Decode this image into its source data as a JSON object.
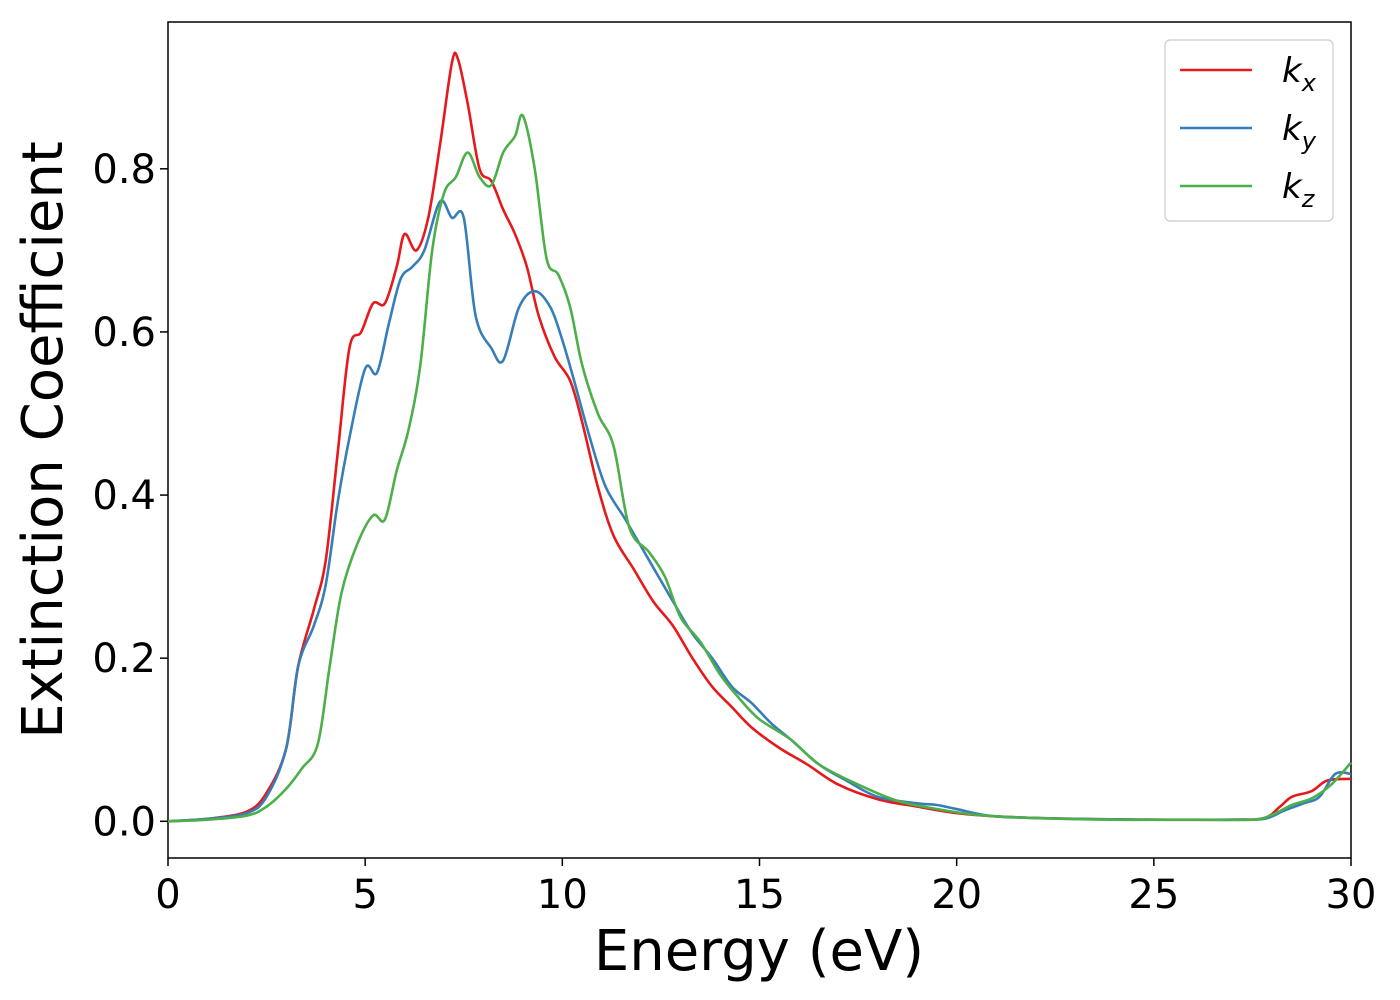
{
  "chart_data": {
    "type": "line",
    "xlabel": "Energy (eV)",
    "ylabel": "Extinction Coefficient",
    "xlim": [
      0,
      30
    ],
    "ylim": [
      -0.045,
      0.98
    ],
    "x_ticks": [
      "0",
      "5",
      "10",
      "15",
      "20",
      "25",
      "30"
    ],
    "y_ticks": [
      "0.0",
      "0.2",
      "0.4",
      "0.6",
      "0.8"
    ],
    "grid": false,
    "legend_position": "top-right",
    "series": [
      {
        "name": "k",
        "subscript": "x",
        "color": "#e41a1c",
        "points": [
          [
            0,
            0.0
          ],
          [
            1,
            0.003
          ],
          [
            2,
            0.012
          ],
          [
            2.5,
            0.035
          ],
          [
            3,
            0.09
          ],
          [
            3.3,
            0.19
          ],
          [
            3.7,
            0.26
          ],
          [
            4,
            0.32
          ],
          [
            4.3,
            0.45
          ],
          [
            4.6,
            0.58
          ],
          [
            4.9,
            0.6
          ],
          [
            5.2,
            0.635
          ],
          [
            5.5,
            0.635
          ],
          [
            5.8,
            0.68
          ],
          [
            6,
            0.72
          ],
          [
            6.3,
            0.7
          ],
          [
            6.6,
            0.74
          ],
          [
            6.9,
            0.83
          ],
          [
            7.2,
            0.93
          ],
          [
            7.35,
            0.935
          ],
          [
            7.6,
            0.88
          ],
          [
            7.9,
            0.8
          ],
          [
            8.2,
            0.785
          ],
          [
            8.5,
            0.75
          ],
          [
            8.8,
            0.72
          ],
          [
            9.1,
            0.68
          ],
          [
            9.4,
            0.62
          ],
          [
            9.8,
            0.57
          ],
          [
            10.2,
            0.54
          ],
          [
            10.5,
            0.49
          ],
          [
            10.9,
            0.41
          ],
          [
            11.3,
            0.35
          ],
          [
            11.8,
            0.31
          ],
          [
            12.3,
            0.27
          ],
          [
            12.8,
            0.24
          ],
          [
            13.3,
            0.2
          ],
          [
            13.8,
            0.165
          ],
          [
            14.3,
            0.14
          ],
          [
            14.8,
            0.115
          ],
          [
            15.5,
            0.09
          ],
          [
            16.2,
            0.07
          ],
          [
            17,
            0.045
          ],
          [
            18,
            0.027
          ],
          [
            19,
            0.018
          ],
          [
            20,
            0.01
          ],
          [
            21,
            0.006
          ],
          [
            23,
            0.003
          ],
          [
            25,
            0.002
          ],
          [
            27,
            0.002
          ],
          [
            27.8,
            0.004
          ],
          [
            28.2,
            0.018
          ],
          [
            28.5,
            0.03
          ],
          [
            29,
            0.037
          ],
          [
            29.4,
            0.05
          ],
          [
            30,
            0.052
          ]
        ]
      },
      {
        "name": "k",
        "subscript": "y",
        "color": "#377eb8",
        "points": [
          [
            0,
            0.0
          ],
          [
            1,
            0.003
          ],
          [
            2,
            0.01
          ],
          [
            2.5,
            0.03
          ],
          [
            3,
            0.09
          ],
          [
            3.3,
            0.19
          ],
          [
            3.7,
            0.24
          ],
          [
            4,
            0.29
          ],
          [
            4.3,
            0.39
          ],
          [
            4.6,
            0.47
          ],
          [
            5,
            0.555
          ],
          [
            5.3,
            0.55
          ],
          [
            5.6,
            0.61
          ],
          [
            5.9,
            0.665
          ],
          [
            6.2,
            0.68
          ],
          [
            6.5,
            0.7
          ],
          [
            6.9,
            0.76
          ],
          [
            7.2,
            0.74
          ],
          [
            7.5,
            0.74
          ],
          [
            7.8,
            0.62
          ],
          [
            8.2,
            0.58
          ],
          [
            8.5,
            0.565
          ],
          [
            8.9,
            0.63
          ],
          [
            9.3,
            0.65
          ],
          [
            9.7,
            0.63
          ],
          [
            10,
            0.59
          ],
          [
            10.3,
            0.54
          ],
          [
            10.7,
            0.47
          ],
          [
            11.1,
            0.41
          ],
          [
            11.6,
            0.37
          ],
          [
            12.2,
            0.32
          ],
          [
            12.8,
            0.27
          ],
          [
            13.3,
            0.23
          ],
          [
            13.8,
            0.2
          ],
          [
            14.3,
            0.165
          ],
          [
            14.8,
            0.145
          ],
          [
            15.3,
            0.12
          ],
          [
            15.8,
            0.1
          ],
          [
            16.5,
            0.07
          ],
          [
            17.2,
            0.05
          ],
          [
            18,
            0.03
          ],
          [
            19,
            0.022
          ],
          [
            19.5,
            0.02
          ],
          [
            20,
            0.015
          ],
          [
            21,
            0.006
          ],
          [
            23,
            0.003
          ],
          [
            25,
            0.002
          ],
          [
            27,
            0.002
          ],
          [
            27.8,
            0.003
          ],
          [
            28.3,
            0.013
          ],
          [
            28.8,
            0.022
          ],
          [
            29.2,
            0.03
          ],
          [
            29.6,
            0.058
          ],
          [
            30,
            0.058
          ]
        ]
      },
      {
        "name": "k",
        "subscript": "z",
        "color": "#4daf4a",
        "points": [
          [
            0,
            0.0
          ],
          [
            1,
            0.002
          ],
          [
            2,
            0.007
          ],
          [
            2.5,
            0.018
          ],
          [
            3,
            0.04
          ],
          [
            3.4,
            0.065
          ],
          [
            3.8,
            0.095
          ],
          [
            4.1,
            0.19
          ],
          [
            4.4,
            0.28
          ],
          [
            4.8,
            0.34
          ],
          [
            5.2,
            0.375
          ],
          [
            5.5,
            0.37
          ],
          [
            5.8,
            0.43
          ],
          [
            6.1,
            0.48
          ],
          [
            6.4,
            0.56
          ],
          [
            6.7,
            0.7
          ],
          [
            7,
            0.77
          ],
          [
            7.3,
            0.79
          ],
          [
            7.6,
            0.82
          ],
          [
            7.9,
            0.79
          ],
          [
            8.2,
            0.78
          ],
          [
            8.5,
            0.82
          ],
          [
            8.8,
            0.84
          ],
          [
            9,
            0.865
          ],
          [
            9.3,
            0.8
          ],
          [
            9.6,
            0.69
          ],
          [
            9.9,
            0.67
          ],
          [
            10.2,
            0.63
          ],
          [
            10.5,
            0.56
          ],
          [
            10.9,
            0.5
          ],
          [
            11.3,
            0.46
          ],
          [
            11.7,
            0.36
          ],
          [
            12.2,
            0.33
          ],
          [
            12.6,
            0.3
          ],
          [
            13,
            0.25
          ],
          [
            13.5,
            0.22
          ],
          [
            14,
            0.18
          ],
          [
            14.5,
            0.15
          ],
          [
            15,
            0.125
          ],
          [
            15.8,
            0.1
          ],
          [
            16.5,
            0.07
          ],
          [
            17.5,
            0.045
          ],
          [
            18.5,
            0.025
          ],
          [
            19.5,
            0.015
          ],
          [
            20.5,
            0.008
          ],
          [
            22,
            0.004
          ],
          [
            24,
            0.002
          ],
          [
            26,
            0.002
          ],
          [
            27.5,
            0.002
          ],
          [
            28,
            0.008
          ],
          [
            28.5,
            0.02
          ],
          [
            29,
            0.028
          ],
          [
            29.5,
            0.045
          ],
          [
            30,
            0.072
          ]
        ]
      }
    ]
  }
}
